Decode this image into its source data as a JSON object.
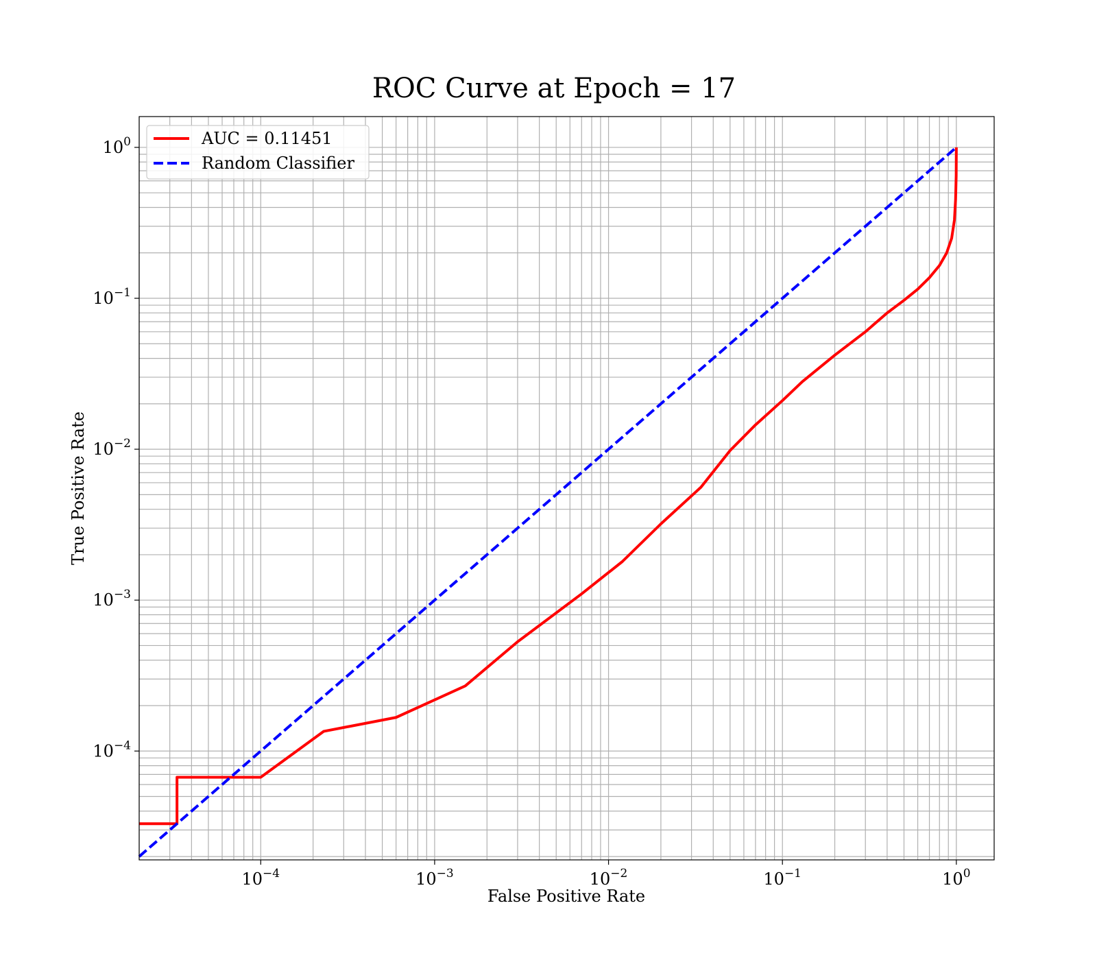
{
  "chart_data": {
    "type": "line",
    "title": "ROC Curve at Epoch = 17",
    "xlabel": "False Positive Rate",
    "ylabel": "True Positive Rate",
    "xscale": "log",
    "yscale": "log",
    "xlim": [
      2e-05,
      1.65
    ],
    "ylim": [
      1.9e-05,
      1.6
    ],
    "grid": true,
    "grid_minor": true,
    "legend_position": "top-left",
    "x_ticks": [
      {
        "base": "10",
        "exp": "−4",
        "value": 0.0001
      },
      {
        "base": "10",
        "exp": "−3",
        "value": 0.001
      },
      {
        "base": "10",
        "exp": "−2",
        "value": 0.01
      },
      {
        "base": "10",
        "exp": "−1",
        "value": 0.1
      },
      {
        "base": "10",
        "exp": "0",
        "value": 1
      }
    ],
    "y_ticks": [
      {
        "base": "10",
        "exp": "−4",
        "value": 0.0001
      },
      {
        "base": "10",
        "exp": "−3",
        "value": 0.001
      },
      {
        "base": "10",
        "exp": "−2",
        "value": 0.01
      },
      {
        "base": "10",
        "exp": "−1",
        "value": 0.1
      },
      {
        "base": "10",
        "exp": "0",
        "value": 1
      }
    ],
    "series": [
      {
        "name": "AUC = 0.11451",
        "color": "#ff0000",
        "style": "solid",
        "points": [
          [
            2e-05,
            3.3e-05
          ],
          [
            3.3e-05,
            3.3e-05
          ],
          [
            3.3e-05,
            6.7e-05
          ],
          [
            0.0001,
            6.7e-05
          ],
          [
            0.00023,
            0.000135
          ],
          [
            0.0006,
            0.000167
          ],
          [
            0.0015,
            0.00027
          ],
          [
            0.003,
            0.00053
          ],
          [
            0.007,
            0.0011
          ],
          [
            0.012,
            0.0018
          ],
          [
            0.02,
            0.0032
          ],
          [
            0.034,
            0.0056
          ],
          [
            0.05,
            0.0098
          ],
          [
            0.07,
            0.0145
          ],
          [
            0.1,
            0.021
          ],
          [
            0.13,
            0.028
          ],
          [
            0.2,
            0.042
          ],
          [
            0.3,
            0.06
          ],
          [
            0.4,
            0.08
          ],
          [
            0.5,
            0.097
          ],
          [
            0.6,
            0.115
          ],
          [
            0.7,
            0.137
          ],
          [
            0.8,
            0.165
          ],
          [
            0.88,
            0.2
          ],
          [
            0.94,
            0.25
          ],
          [
            0.975,
            0.33
          ],
          [
            0.99,
            0.45
          ],
          [
            0.998,
            0.65
          ],
          [
            1.0,
            1.0
          ]
        ]
      },
      {
        "name": "Random Classifier",
        "color": "#0000ff",
        "style": "dashed",
        "points": [
          [
            2e-05,
            2e-05
          ],
          [
            1.0,
            1.0
          ]
        ]
      }
    ]
  }
}
